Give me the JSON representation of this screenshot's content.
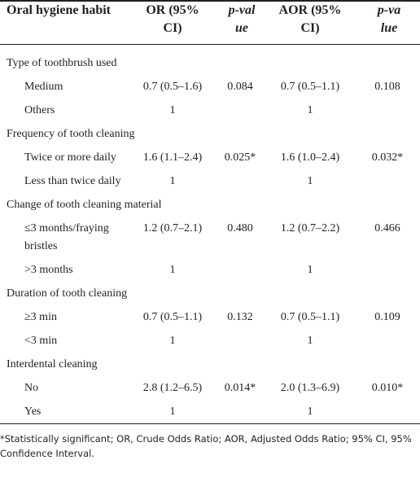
{
  "table": {
    "header": [
      "Oral hygiene habit",
      "OR (95% CI)",
      "p-value",
      "AOR (95% CI)",
      "p-value"
    ],
    "sections": [
      {
        "title": "Type of toothbrush used",
        "rows": [
          {
            "label": "Medium",
            "or": "0.7 (0.5–1.6)",
            "p": "0.084",
            "aor": "0.7 (0.5–1.1)",
            "ap": "0.108"
          },
          {
            "label": "Others",
            "or": "1",
            "aor": "1"
          }
        ]
      },
      {
        "title": "Frequency of tooth cleaning",
        "rows": [
          {
            "label": "Twice or more daily",
            "or": "1.6 (1.1–2.4)",
            "p": "0.025*",
            "aor": "1.6 (1.0–2.4)",
            "ap": "0.032*"
          },
          {
            "label": "Less than twice daily",
            "or": "1",
            "aor": "1"
          }
        ]
      },
      {
        "title": "Change of tooth cleaning material",
        "rows": [
          {
            "label": "≤3 months/fraying bristles",
            "or": "1.2 (0.7–2.1)",
            "p": "0.480",
            "aor": "1.2 (0.7–2.2)",
            "ap": "0.466"
          },
          {
            "label": ">3 months",
            "or": "1",
            "aor": "1"
          }
        ]
      },
      {
        "title": "Duration of tooth cleaning",
        "rows": [
          {
            "label": "≥3 min",
            "or": "0.7 (0.5–1.1)",
            "p": "0.132",
            "aor": "0.7 (0.5–1.1)",
            "ap": "0.109"
          },
          {
            "label": "<3 min",
            "or": "1",
            "aor": "1"
          }
        ]
      },
      {
        "title": "Interdental cleaning",
        "rows": [
          {
            "label": "No",
            "or": "2.8 (1.2–6.5)",
            "p": "0.014*",
            "aor": "2.0 (1.3–6.9)",
            "ap": "0.010*"
          },
          {
            "label": "Yes",
            "or": "1",
            "aor": "1"
          }
        ]
      }
    ],
    "footnote": "*Statistically significant; OR, Crude Odds Ratio; AOR, Adjusted Odds Ratio; 95% CI, 95% Confidence Interval."
  }
}
